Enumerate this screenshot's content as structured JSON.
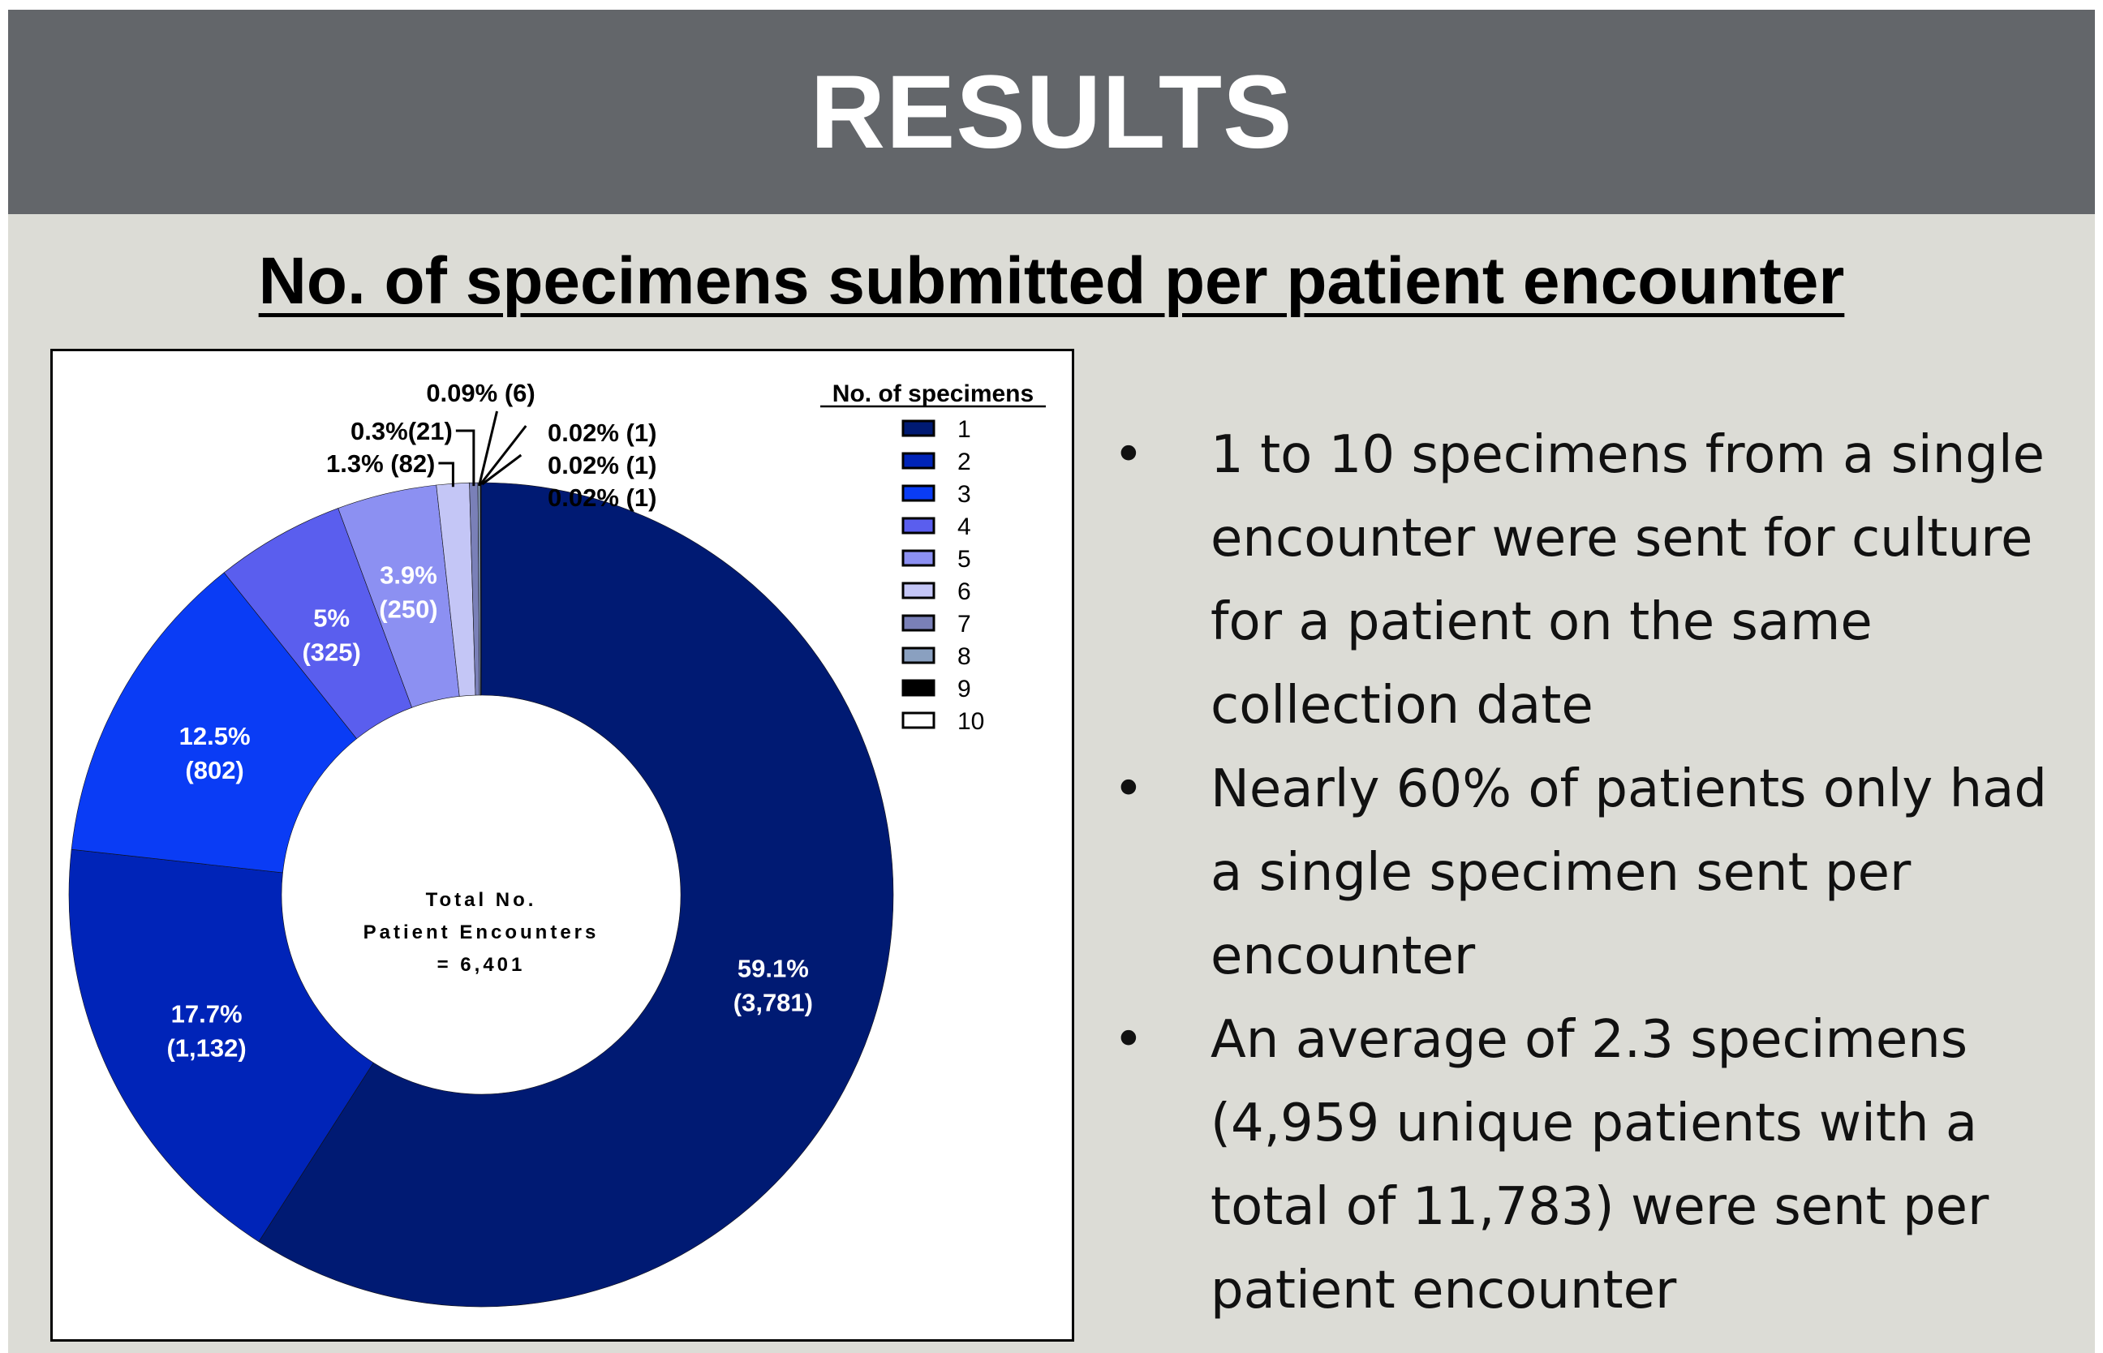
{
  "header": {
    "title": "RESULTS"
  },
  "subtitle": "No. of specimens submitted per patient encounter",
  "bullets": [
    "1 to 10 specimens from a single encounter were sent for culture for a patient on the same collection date",
    "Nearly 60% of patients only had a single specimen sent per encounter",
    "An average of 2.3 specimens (4,959 unique patients with a total of 11,783) were sent per patient encounter"
  ],
  "bullet_marker": "•",
  "chart_data": {
    "type": "pie",
    "variant": "donut",
    "center_label": [
      "Total No.",
      "Patient Encounters",
      "= 6,401"
    ],
    "legend_title": "No. of specimens",
    "legend_placement": "top-right",
    "categories": [
      "1",
      "2",
      "3",
      "4",
      "5",
      "6",
      "7",
      "8",
      "9",
      "10"
    ],
    "values": [
      3781,
      1132,
      802,
      325,
      250,
      82,
      21,
      6,
      1,
      1
    ],
    "labels": [
      "59.1%",
      "17.7%",
      "12.5%",
      "5%",
      "3.9%",
      "1.3% (82)",
      "0.3%(21)",
      "0.09% (6)",
      "0.02% (1)",
      "0.02% (1)"
    ],
    "count_labels": [
      "(3,781)",
      "(1,132)",
      "(802)",
      "(325)",
      "(250)",
      "",
      "",
      "",
      "",
      ""
    ],
    "extra_callout": "0.02% (1)",
    "colors": [
      "#001a73",
      "#0024b8",
      "#0a3cf5",
      "#5a5eee",
      "#8c90f2",
      "#c4c6f6",
      "#7a80b8",
      "#8aa0c0",
      "#000000",
      "#ffffff"
    ]
  }
}
